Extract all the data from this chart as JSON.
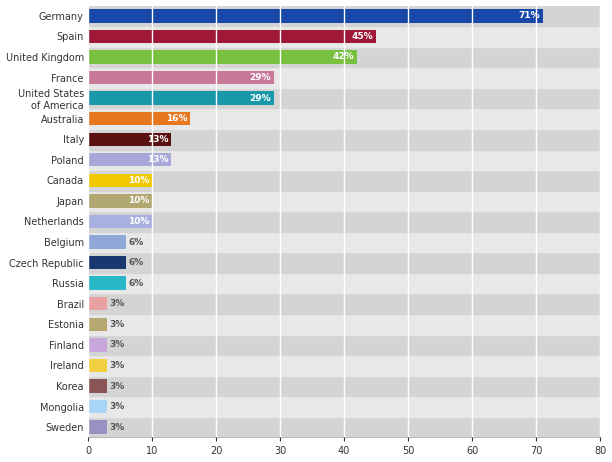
{
  "categories": [
    "Sweden",
    "Mongolia",
    "Korea",
    "Ireland",
    "Finland",
    "Estonia",
    "Brazil",
    "Russia",
    "Czech Republic",
    "Belgium",
    "Netherlands",
    "Japan",
    "Canada",
    "Poland",
    "Italy",
    "Australia",
    "United States\nof America",
    "France",
    "United Kingdom",
    "Spain",
    "Germany"
  ],
  "values": [
    3,
    3,
    3,
    3,
    3,
    3,
    3,
    6,
    6,
    6,
    10,
    10,
    10,
    13,
    13,
    16,
    29,
    29,
    42,
    45,
    71
  ],
  "colors": [
    "#9b90c2",
    "#a8d4f5",
    "#8b5555",
    "#f0d040",
    "#c8a8dc",
    "#b5a870",
    "#e8a0a0",
    "#28b8c8",
    "#1a3870",
    "#8fa8d8",
    "#a8b0e0",
    "#b0a870",
    "#f0c800",
    "#a8a8d8",
    "#5a1010",
    "#e87820",
    "#1898a8",
    "#c87898",
    "#78c040",
    "#a01838",
    "#1848a8"
  ],
  "xlim": [
    0,
    80
  ],
  "xticks": [
    0,
    10,
    20,
    30,
    40,
    50,
    60,
    70,
    80
  ],
  "bar_bg_even": "#d4d4d4",
  "bar_bg_odd": "#e8e8e8",
  "figure_bg": "#ffffff",
  "grid_color": "#ffffff",
  "label_inside_color": "#ffffff",
  "label_outside_color": "#555555",
  "label_fontsize": 6.5,
  "ytick_fontsize": 7,
  "xtick_fontsize": 7,
  "bar_height": 0.65
}
